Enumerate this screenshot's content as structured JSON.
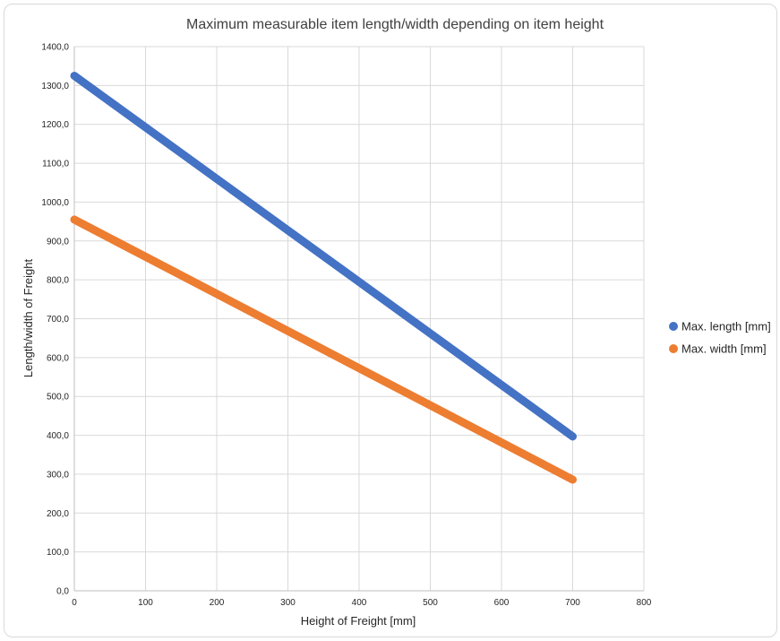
{
  "chart_data": {
    "type": "line",
    "title": "Maximum measurable item length/width depending on item height",
    "xlabel": "Height of Freight [mm]",
    "ylabel": "Length/width of Freight",
    "xlim": [
      0,
      800
    ],
    "ylim": [
      0,
      1400
    ],
    "x_ticks": [
      "0",
      "100",
      "200",
      "300",
      "400",
      "500",
      "600",
      "700",
      "800"
    ],
    "y_ticks": [
      "0,0",
      "100,0",
      "200,0",
      "300,0",
      "400,0",
      "500,0",
      "600,0",
      "700,0",
      "800,0",
      "900,0",
      "1000,0",
      "1100,0",
      "1200,0",
      "1300,0",
      "1400,0"
    ],
    "grid": true,
    "legend_position": "right",
    "series": [
      {
        "name": "Max. length [mm]",
        "color": "#4472C4",
        "x": [
          0,
          700
        ],
        "y": [
          1325,
          397
        ]
      },
      {
        "name": "Max. width [mm]",
        "color": "#ED7D31",
        "x": [
          0,
          700
        ],
        "y": [
          955,
          286
        ]
      }
    ]
  }
}
